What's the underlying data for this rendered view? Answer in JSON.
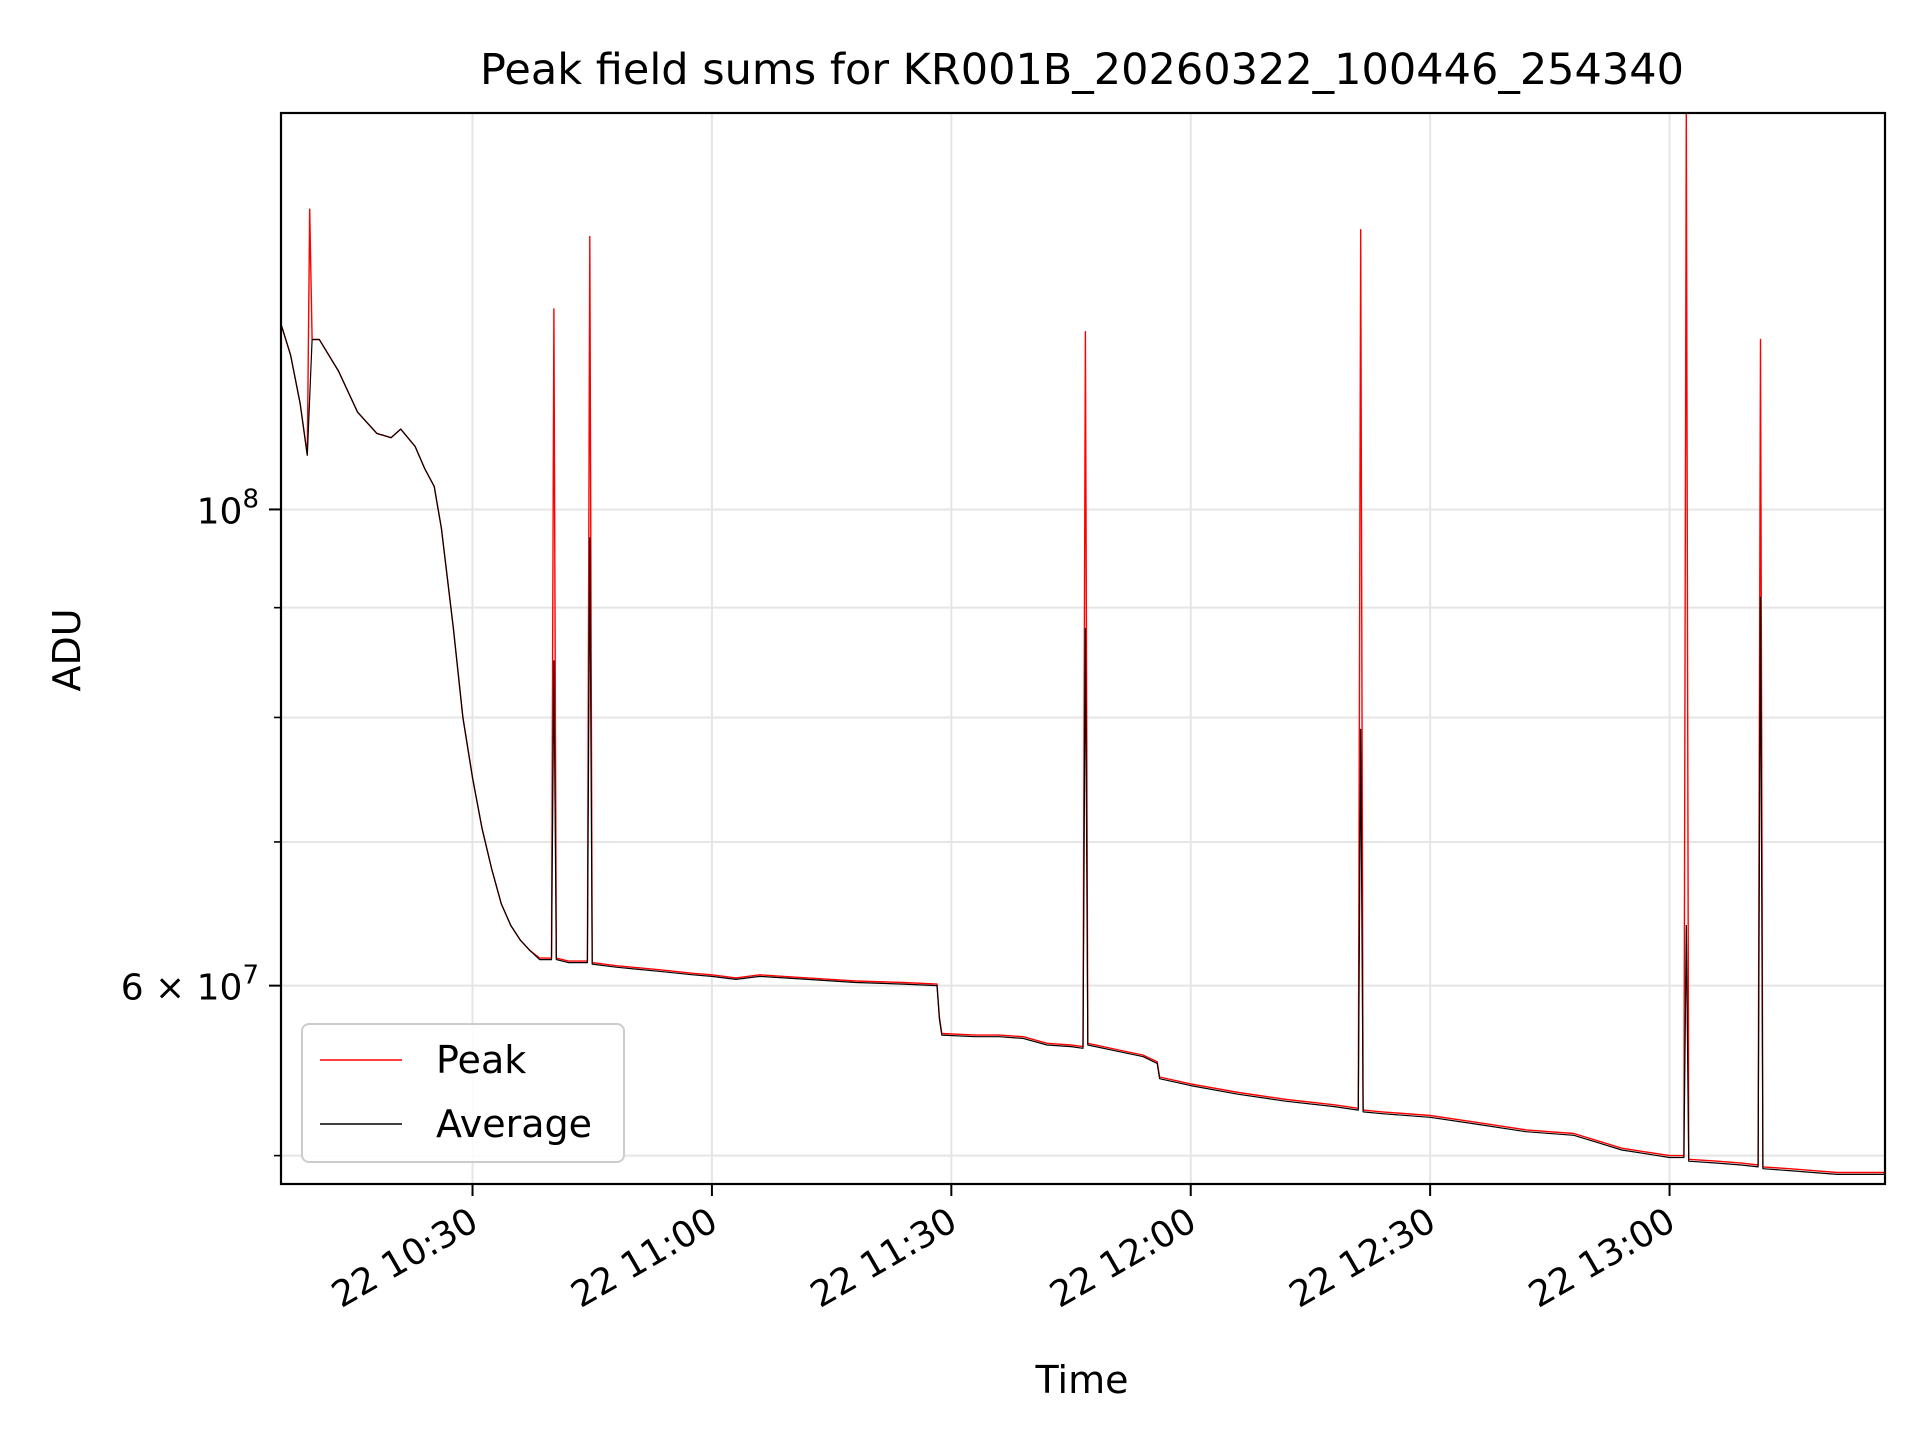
{
  "chart_data": {
    "type": "line",
    "title": "Peak field sums for KR001B_20260322_100446_254340",
    "xlabel": "Time",
    "ylabel": "ADU",
    "yscale": "log",
    "xlim": [
      10.4,
      13.75
    ],
    "ylim": [
      48500000,
      153000000
    ],
    "grid": true,
    "legend_position": "lower-left",
    "x_ticks": [
      {
        "value": 10.8,
        "label": "22 10:30"
      },
      {
        "value": 11.3,
        "label": "22 11:00"
      },
      {
        "value": 11.8,
        "label": "22 11:30"
      },
      {
        "value": 12.3,
        "label": "22 12:00"
      },
      {
        "value": 12.8,
        "label": "22 12:30"
      },
      {
        "value": 13.3,
        "label": "22 13:00"
      }
    ],
    "y_ticks_labeled": [
      {
        "value": 60000000,
        "label": "6 × 10",
        "sup": "7"
      },
      {
        "value": 100000000,
        "label": "10",
        "sup": "8"
      }
    ],
    "y_ticks_minor": [
      50000000,
      70000000,
      80000000,
      90000000
    ],
    "series": [
      {
        "name": "Peak",
        "color": "#ff0000",
        "points": [
          [
            10.4,
            122000000
          ],
          [
            10.42,
            118000000
          ],
          [
            10.44,
            112000000
          ],
          [
            10.455,
            106000000
          ],
          [
            10.46,
            138000000
          ],
          [
            10.465,
            120000000
          ],
          [
            10.48,
            120000000
          ],
          [
            10.52,
            116000000
          ],
          [
            10.56,
            111000000
          ],
          [
            10.6,
            108500000
          ],
          [
            10.63,
            108000000
          ],
          [
            10.65,
            109000000
          ],
          [
            10.68,
            107000000
          ],
          [
            10.7,
            104500000
          ],
          [
            10.72,
            102500000
          ],
          [
            10.735,
            98000000
          ],
          [
            10.76,
            88000000
          ],
          [
            10.78,
            80000000
          ],
          [
            10.8,
            75000000
          ],
          [
            10.82,
            71000000
          ],
          [
            10.84,
            68000000
          ],
          [
            10.86,
            65500000
          ],
          [
            10.88,
            64000000
          ],
          [
            10.9,
            63000000
          ],
          [
            10.92,
            62300000
          ],
          [
            10.94,
            61800000
          ],
          [
            10.965,
            61800000
          ],
          [
            10.97,
            124000000
          ],
          [
            10.975,
            61800000
          ],
          [
            11.0,
            61600000
          ],
          [
            11.04,
            61600000
          ],
          [
            11.045,
            134000000
          ],
          [
            11.05,
            61500000
          ],
          [
            11.1,
            61300000
          ],
          [
            11.2,
            61000000
          ],
          [
            11.26,
            60800000
          ],
          [
            11.3,
            60700000
          ],
          [
            11.35,
            60500000
          ],
          [
            11.4,
            60700000
          ],
          [
            11.45,
            60600000
          ],
          [
            11.5,
            60500000
          ],
          [
            11.6,
            60300000
          ],
          [
            11.7,
            60200000
          ],
          [
            11.77,
            60100000
          ],
          [
            11.775,
            58000000
          ],
          [
            11.78,
            57000000
          ],
          [
            11.85,
            56900000
          ],
          [
            11.9,
            56900000
          ],
          [
            11.95,
            56800000
          ],
          [
            12.0,
            56400000
          ],
          [
            12.05,
            56300000
          ],
          [
            12.075,
            56200000
          ],
          [
            12.08,
            121000000
          ],
          [
            12.085,
            56400000
          ],
          [
            12.15,
            56000000
          ],
          [
            12.2,
            55700000
          ],
          [
            12.23,
            55300000
          ],
          [
            12.235,
            54400000
          ],
          [
            12.3,
            54000000
          ],
          [
            12.4,
            53500000
          ],
          [
            12.5,
            53100000
          ],
          [
            12.6,
            52800000
          ],
          [
            12.65,
            52600000
          ],
          [
            12.655,
            135000000
          ],
          [
            12.66,
            52500000
          ],
          [
            12.7,
            52400000
          ],
          [
            12.8,
            52200000
          ],
          [
            12.9,
            51800000
          ],
          [
            13.0,
            51400000
          ],
          [
            13.1,
            51200000
          ],
          [
            13.15,
            50800000
          ],
          [
            13.2,
            50400000
          ],
          [
            13.25,
            50200000
          ],
          [
            13.3,
            50000000
          ],
          [
            13.33,
            50000000
          ],
          [
            13.335,
            154000000
          ],
          [
            13.34,
            49800000
          ],
          [
            13.4,
            49700000
          ],
          [
            13.45,
            49600000
          ],
          [
            13.485,
            49500000
          ],
          [
            13.49,
            120000000
          ],
          [
            13.495,
            49400000
          ],
          [
            13.55,
            49300000
          ],
          [
            13.6,
            49200000
          ],
          [
            13.65,
            49100000
          ],
          [
            13.7,
            49100000
          ],
          [
            13.75,
            49100000
          ]
        ]
      },
      {
        "name": "Average",
        "color": "#000000",
        "points": [
          [
            10.4,
            122000000
          ],
          [
            10.42,
            118000000
          ],
          [
            10.44,
            112000000
          ],
          [
            10.455,
            106000000
          ],
          [
            10.465,
            120000000
          ],
          [
            10.48,
            120000000
          ],
          [
            10.52,
            116000000
          ],
          [
            10.56,
            111000000
          ],
          [
            10.6,
            108500000
          ],
          [
            10.63,
            108000000
          ],
          [
            10.65,
            109000000
          ],
          [
            10.68,
            107000000
          ],
          [
            10.7,
            104500000
          ],
          [
            10.72,
            102500000
          ],
          [
            10.735,
            98000000
          ],
          [
            10.76,
            88000000
          ],
          [
            10.78,
            80000000
          ],
          [
            10.8,
            75000000
          ],
          [
            10.82,
            71000000
          ],
          [
            10.84,
            68000000
          ],
          [
            10.86,
            65500000
          ],
          [
            10.88,
            64000000
          ],
          [
            10.9,
            63000000
          ],
          [
            10.92,
            62300000
          ],
          [
            10.94,
            61700000
          ],
          [
            10.965,
            61700000
          ],
          [
            10.97,
            85000000
          ],
          [
            10.975,
            61700000
          ],
          [
            11.0,
            61500000
          ],
          [
            11.04,
            61500000
          ],
          [
            11.045,
            97000000
          ],
          [
            11.05,
            61400000
          ],
          [
            11.1,
            61200000
          ],
          [
            11.2,
            60900000
          ],
          [
            11.26,
            60700000
          ],
          [
            11.3,
            60600000
          ],
          [
            11.35,
            60400000
          ],
          [
            11.4,
            60600000
          ],
          [
            11.45,
            60500000
          ],
          [
            11.5,
            60400000
          ],
          [
            11.6,
            60200000
          ],
          [
            11.7,
            60100000
          ],
          [
            11.77,
            60000000
          ],
          [
            11.775,
            57900000
          ],
          [
            11.78,
            56900000
          ],
          [
            11.85,
            56800000
          ],
          [
            11.9,
            56800000
          ],
          [
            11.95,
            56700000
          ],
          [
            12.0,
            56300000
          ],
          [
            12.05,
            56200000
          ],
          [
            12.075,
            56100000
          ],
          [
            12.08,
            88000000
          ],
          [
            12.085,
            56300000
          ],
          [
            12.15,
            55900000
          ],
          [
            12.2,
            55600000
          ],
          [
            12.23,
            55200000
          ],
          [
            12.235,
            54300000
          ],
          [
            12.3,
            53900000
          ],
          [
            12.4,
            53400000
          ],
          [
            12.5,
            53000000
          ],
          [
            12.6,
            52700000
          ],
          [
            12.65,
            52500000
          ],
          [
            12.655,
            79000000
          ],
          [
            12.66,
            52400000
          ],
          [
            12.7,
            52300000
          ],
          [
            12.8,
            52100000
          ],
          [
            12.9,
            51700000
          ],
          [
            13.0,
            51300000
          ],
          [
            13.1,
            51100000
          ],
          [
            13.15,
            50700000
          ],
          [
            13.2,
            50300000
          ],
          [
            13.25,
            50100000
          ],
          [
            13.3,
            49900000
          ],
          [
            13.33,
            49900000
          ],
          [
            13.335,
            64000000
          ],
          [
            13.34,
            49700000
          ],
          [
            13.4,
            49600000
          ],
          [
            13.45,
            49500000
          ],
          [
            13.485,
            49400000
          ],
          [
            13.49,
            91000000
          ],
          [
            13.495,
            49300000
          ],
          [
            13.55,
            49200000
          ],
          [
            13.6,
            49100000
          ],
          [
            13.65,
            49000000
          ],
          [
            13.7,
            49000000
          ],
          [
            13.75,
            49000000
          ]
        ]
      }
    ]
  }
}
